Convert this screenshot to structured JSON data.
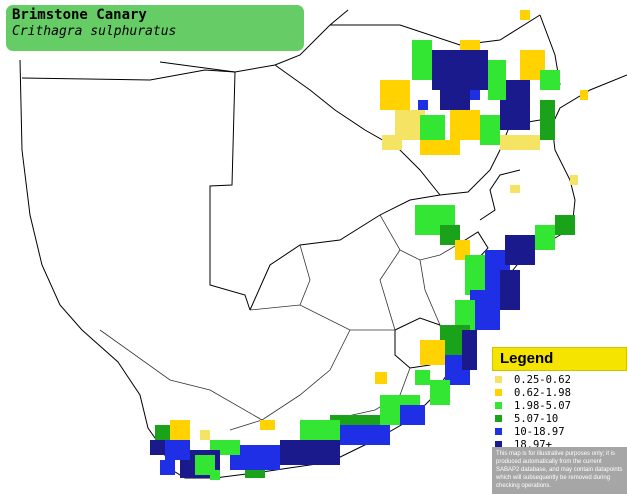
{
  "title": {
    "common_name": "Brimstone Canary",
    "scientific_name": "Crithagra sulphuratus"
  },
  "legend": {
    "heading": "Legend",
    "items": [
      {
        "label": "0.25-0.62",
        "color": "#f5e463"
      },
      {
        "label": "0.62-1.98",
        "color": "#ffd200"
      },
      {
        "label": "1.98-5.07",
        "color": "#33e633"
      },
      {
        "label": "5.07-10",
        "color": "#1aa31a"
      },
      {
        "label": "10-18.97",
        "color": "#1e2fe6"
      },
      {
        "label": "18.97+",
        "color": "#1a1a8c"
      }
    ],
    "disclaimer": "This map is for illustrative purposes only; it is produced automatically from the current SABAP2 database, and may contain datapoints which will subsequently be removed during checking operations."
  },
  "map_colors": {
    "water": "#ffffff",
    "land": "#ffffff",
    "border": "#000000",
    "province_border": "#555555"
  }
}
